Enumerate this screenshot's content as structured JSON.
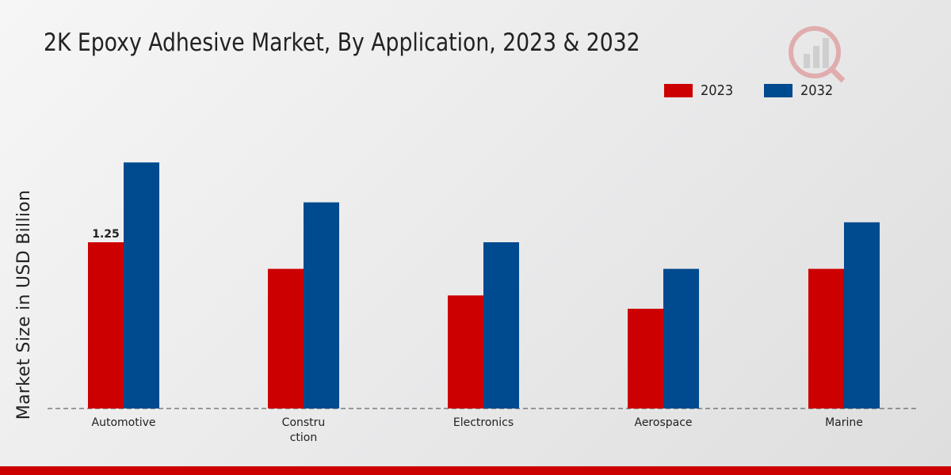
{
  "chart_data": {
    "type": "bar",
    "title": "2K Epoxy Adhesive Market, By Application, 2023 & 2032",
    "ylabel": "Market Size in USD Billion",
    "xlabel": "",
    "categories": [
      "Automotive",
      "Construction",
      "Electronics",
      "Aerospace",
      "Marine"
    ],
    "category_labels": [
      [
        "Automotive"
      ],
      [
        "Constru",
        "ction"
      ],
      [
        "Electronics"
      ],
      [
        "Aerospace"
      ],
      [
        "Marine"
      ]
    ],
    "series": [
      {
        "name": "2023",
        "color": "#cc0000",
        "values": [
          1.25,
          1.05,
          0.85,
          0.75,
          1.05
        ]
      },
      {
        "name": "2032",
        "color": "#004a8f",
        "values": [
          1.85,
          1.55,
          1.25,
          1.05,
          1.4
        ]
      }
    ],
    "data_labels": [
      {
        "series": 0,
        "index": 0,
        "text": "1.25"
      }
    ],
    "ylim": [
      0,
      2.6
    ],
    "grid": false,
    "legend_position": "top-right"
  },
  "colors": {
    "accent": "#cc0000",
    "series_2032": "#004a8f"
  }
}
